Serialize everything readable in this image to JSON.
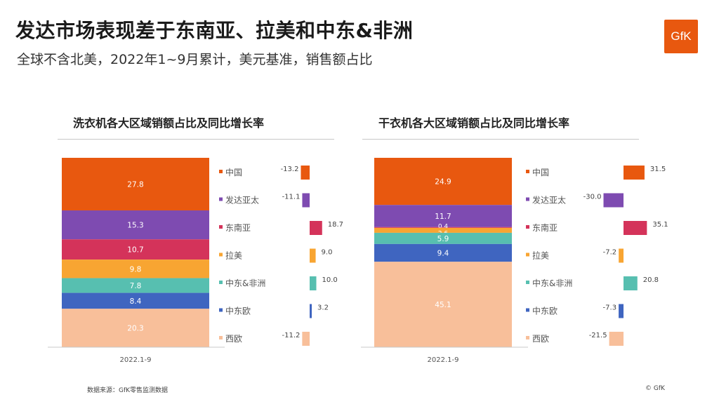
{
  "title": "发达市场表现差于东南亚、拉美和中东&非洲",
  "subtitle": "全球不含北美，2022年1~9月累计，美元基准，销售额占比",
  "logo_text": "GfK",
  "source": "数据来源：GfK零售监测数据",
  "copyright": "© GfK",
  "colors": {
    "中国": "#e8580f",
    "发达亚太": "#7e4bb1",
    "东南亚": "#d4335a",
    "拉美": "#f8a532",
    "中东&非洲": "#57bfb0",
    "中东欧": "#3f65c0",
    "西欧": "#f8bf9a",
    "logo": "#e8580f"
  },
  "chart_data": [
    {
      "type": "bar",
      "title": "洗衣机各大区域销额占比及同比增长率",
      "category": "2022.1-9",
      "legend": [
        "中国",
        "发达亚太",
        "东南亚",
        "拉美",
        "中东&非洲",
        "中东欧",
        "西欧"
      ],
      "share": [
        27.8,
        15.3,
        10.7,
        9.8,
        7.8,
        8.4,
        20.3
      ],
      "growth": [
        -13.2,
        -11.1,
        18.7,
        9.0,
        10.0,
        3.2,
        -11.2
      ]
    },
    {
      "type": "bar",
      "title": "干衣机各大区域销额占比及同比增长率",
      "category": "2022.1-9",
      "legend": [
        "中国",
        "发达亚太",
        "东南亚",
        "拉美",
        "中东&非洲",
        "中东欧",
        "西欧"
      ],
      "share": [
        24.9,
        11.7,
        0.4,
        2.6,
        5.9,
        9.4,
        45.1
      ],
      "growth": [
        31.5,
        -30.0,
        35.1,
        -7.2,
        20.8,
        -7.3,
        -21.5
      ]
    }
  ]
}
